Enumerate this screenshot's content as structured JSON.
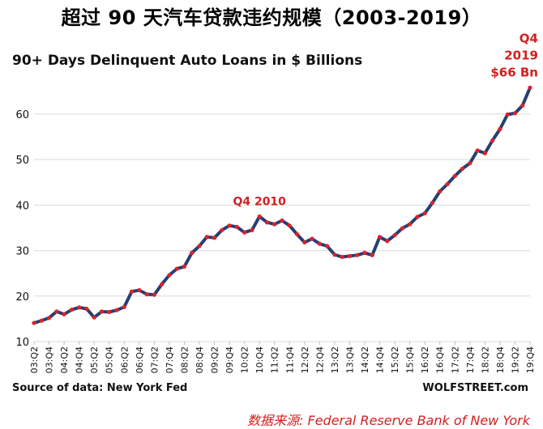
{
  "header": {
    "title": "超过 90 天汽车贷款违约规模（2003-2019）"
  },
  "chart_data": {
    "type": "line",
    "title": "90+ Days Delinquent Auto Loans in $ Billions",
    "ylim": [
      10,
      68
    ],
    "yticks": [
      10,
      20,
      30,
      40,
      50,
      60
    ],
    "grid": "horizontal",
    "x": [
      "03:Q2",
      "03:Q3",
      "03:Q4",
      "04:Q1",
      "04:Q2",
      "04:Q3",
      "04:Q4",
      "05:Q1",
      "05:Q2",
      "05:Q3",
      "05:Q4",
      "06:Q1",
      "06:Q2",
      "06:Q3",
      "06:Q4",
      "07:Q1",
      "07:Q2",
      "07:Q3",
      "07:Q4",
      "08:Q1",
      "08:Q2",
      "08:Q3",
      "08:Q4",
      "09:Q1",
      "09:Q2",
      "09:Q3",
      "09:Q4",
      "10:Q1",
      "10:Q2",
      "10:Q3",
      "10:Q4",
      "11:Q1",
      "11:Q2",
      "11:Q3",
      "11:Q4",
      "12:Q1",
      "12:Q2",
      "12:Q3",
      "12:Q4",
      "13:Q1",
      "13:Q2",
      "13:Q3",
      "13:Q4",
      "14:Q1",
      "14:Q2",
      "14:Q3",
      "14:Q4",
      "15:Q1",
      "15:Q2",
      "15:Q3",
      "15:Q4",
      "16:Q1",
      "16:Q2",
      "16:Q3",
      "16:Q4",
      "17:Q1",
      "17:Q2",
      "17:Q3",
      "17:Q4",
      "18:Q1",
      "18:Q2",
      "18:Q3",
      "18:Q4",
      "19:Q1",
      "19:Q2",
      "19:Q3",
      "19:Q4"
    ],
    "xtick_labels": [
      "03:Q2",
      "03:Q4",
      "04:Q2",
      "04:Q4",
      "05:Q2",
      "05:Q4",
      "06:Q2",
      "06:Q4",
      "07:Q2",
      "07:Q4",
      "08:Q2",
      "08:Q4",
      "09:Q2",
      "09:Q4",
      "10:Q2",
      "10:Q4",
      "11:Q2",
      "11:Q4",
      "12:Q2",
      "12:Q4",
      "13:Q2",
      "13:Q4",
      "14:Q2",
      "14:Q4",
      "15:Q2",
      "15:Q4",
      "16:Q2",
      "16:Q4",
      "17:Q2",
      "17:Q4",
      "18:Q2",
      "18:Q4",
      "19:Q2",
      "19:Q4"
    ],
    "series": [
      {
        "color": "#243f73",
        "marker_color": "#e0202a",
        "values": [
          14.1,
          14.6,
          15.2,
          16.6,
          16.0,
          17.0,
          17.5,
          17.2,
          15.3,
          16.6,
          16.5,
          16.9,
          17.6,
          21.0,
          21.3,
          20.4,
          20.3,
          22.6,
          24.6,
          26.0,
          26.5,
          29.5,
          31.0,
          33.0,
          32.8,
          34.5,
          35.5,
          35.2,
          34.0,
          34.5,
          37.5,
          36.2,
          35.8,
          36.6,
          35.5,
          33.6,
          31.8,
          32.6,
          31.5,
          31.0,
          29.1,
          28.6,
          28.8,
          29.0,
          29.5,
          29.0,
          33.0,
          32.1,
          33.4,
          34.9,
          35.8,
          37.4,
          38.2,
          40.5,
          43.0,
          44.6,
          46.4,
          48.0,
          49.2,
          52.0,
          51.4,
          54.2,
          56.7,
          59.9,
          60.2,
          61.9,
          65.8
        ]
      }
    ],
    "annotations": [
      {
        "text": "Q4 2010",
        "x": "10:Q4",
        "y": 37.5,
        "color": "#d32020"
      },
      {
        "lines": [
          "Q4",
          "2019",
          "$66 Bn"
        ],
        "x": "19:Q4",
        "y": 65.8,
        "color": "#d32020"
      }
    ],
    "source": "Source of data: New York Fed",
    "brand": "WOLFSTREET.com"
  },
  "footer": {
    "note": "数据来源:  Federal Reserve Bank of New York"
  }
}
